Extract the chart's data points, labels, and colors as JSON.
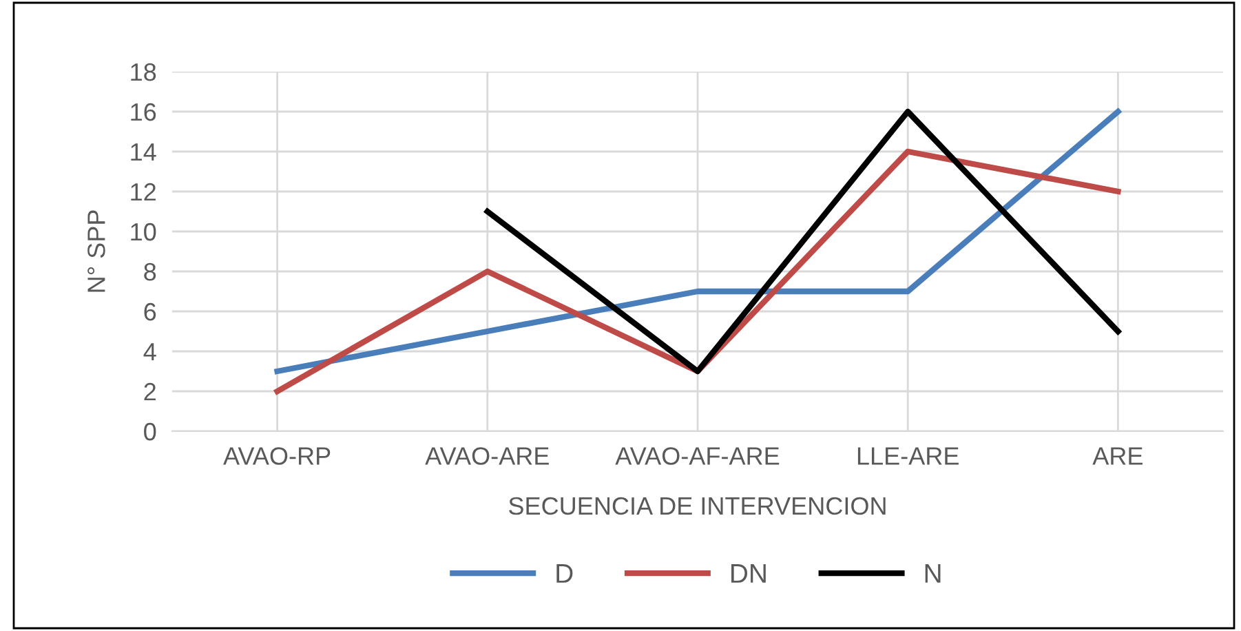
{
  "chart_data": {
    "type": "line",
    "xlabel": "SECUENCIA DE INTERVENCION",
    "ylabel": "N° SPP",
    "categories": [
      "AVAO-RP",
      "AVAO-ARE",
      "AVAO-AF-ARE",
      "LLE-ARE",
      "ARE"
    ],
    "series": [
      {
        "name": "D",
        "color": "#4a7ebb",
        "values": [
          3,
          5,
          7,
          7,
          16
        ]
      },
      {
        "name": "DN",
        "color": "#be4b48",
        "values": [
          2,
          8,
          3,
          14,
          12
        ]
      },
      {
        "name": "N",
        "color": "#000000",
        "values": [
          null,
          11,
          3,
          16,
          5
        ]
      }
    ],
    "ylim": [
      0,
      18
    ],
    "yticks": [
      0,
      2,
      4,
      6,
      8,
      10,
      12,
      14,
      16,
      18
    ],
    "grid": true,
    "legend": "bottom",
    "marker": "none",
    "line_style": "solid"
  }
}
